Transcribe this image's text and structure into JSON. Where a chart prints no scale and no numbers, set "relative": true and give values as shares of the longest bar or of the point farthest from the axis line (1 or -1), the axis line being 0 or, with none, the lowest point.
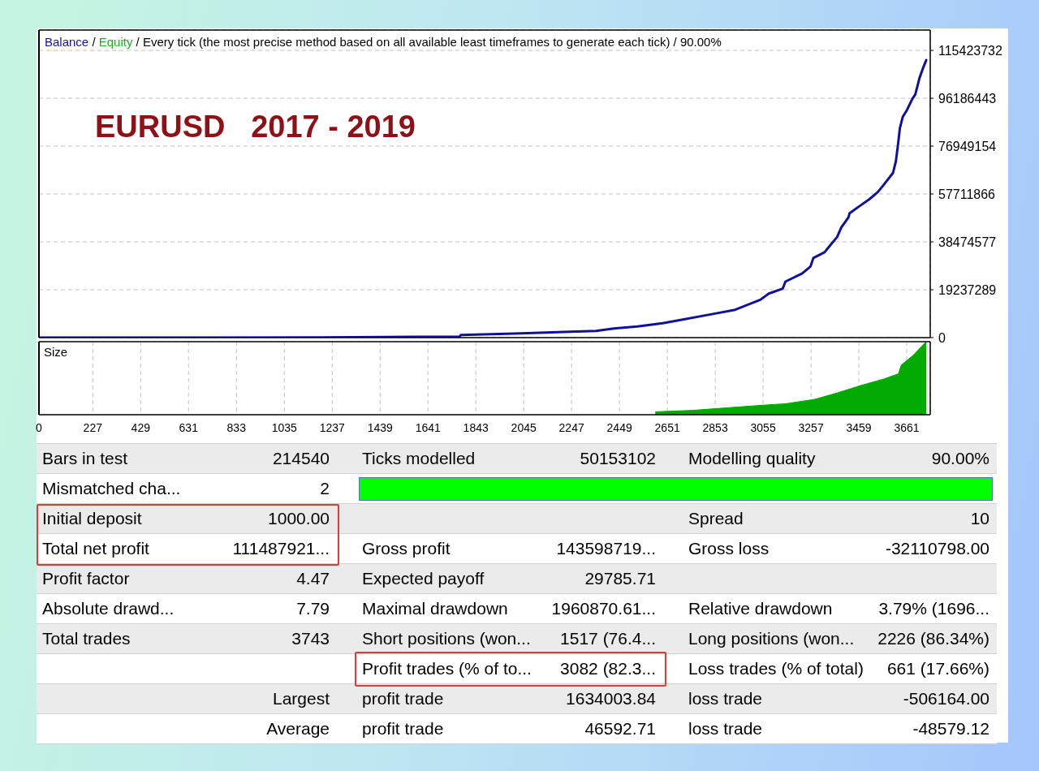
{
  "chart_data": [
    {
      "type": "line",
      "title": "EURUSD   2017 - 2019",
      "subtitle": "/ Every tick (the most precise method based on all available least timeframes to generate each tick) / 90.00%",
      "annotations": [
        "/"
      ],
      "x": [
        0,
        600,
        1200,
        1775,
        1780,
        2035,
        2240,
        2350,
        2419,
        2525,
        2631,
        2702,
        2843,
        2937,
        3043,
        3079,
        3138,
        3149,
        3220,
        3255,
        3267,
        3314,
        3338,
        3367,
        3385,
        3415,
        3420,
        3461,
        3503,
        3538,
        3562,
        3603,
        3615,
        3624,
        3632,
        3644,
        3662,
        3685,
        3697,
        3715,
        3732,
        3743
      ],
      "series": [
        {
          "name": "Balance",
          "color": "#10109c",
          "values": [
            0,
            0,
            100000,
            400000,
            1100000,
            1700000,
            2400000,
            2700000,
            3600000,
            4500000,
            5800000,
            7000000,
            9500000,
            11200000,
            15200000,
            17700000,
            19700000,
            22500000,
            25800000,
            28600000,
            32000000,
            34300000,
            37100000,
            40400000,
            44300000,
            48300000,
            50000000,
            52800000,
            55600000,
            58400000,
            61200000,
            66200000,
            70800000,
            77500000,
            84200000,
            88700000,
            91500000,
            96000000,
            97700000,
            104400000,
            108900000,
            111500000
          ]
        },
        {
          "name": "Equity",
          "color": "#1fae1f",
          "values": [
            null,
            null,
            null,
            null,
            null,
            null,
            null,
            null,
            null,
            null,
            null,
            null,
            null,
            null,
            null,
            null,
            null,
            null,
            null,
            null,
            null,
            null,
            null,
            null,
            null,
            null,
            null,
            null,
            null,
            null,
            null,
            null,
            null,
            null,
            null,
            null,
            null,
            null,
            null,
            null,
            null,
            null
          ]
        }
      ],
      "xlim": [
        0,
        3760
      ],
      "xticks": [
        0,
        227,
        429,
        631,
        833,
        1035,
        1237,
        1439,
        1641,
        1843,
        2045,
        2247,
        2449,
        2651,
        2853,
        3055,
        3257,
        3459,
        3661
      ],
      "ylim": [
        0,
        123600000
      ],
      "yticks": [
        0,
        19237289,
        38474577,
        57711866,
        76949154,
        96186443,
        115423732
      ],
      "tick_labels": "y",
      "grid": true,
      "legend": "top left"
    },
    {
      "type": "area",
      "title": "Size",
      "relative": true,
      "x": [
        2600,
        2758,
        3052,
        3149,
        3272,
        3369,
        3467,
        3565,
        3626,
        3638,
        3687,
        3743
      ],
      "series": [
        {
          "color": "#00aa00",
          "values": [
            0.04,
            0.06,
            0.13,
            0.15,
            0.21,
            0.3,
            0.4,
            0.49,
            0.56,
            0.68,
            0.81,
            1
          ]
        }
      ],
      "xlim": [
        0,
        3760
      ],
      "xticks": [
        0,
        227,
        429,
        631,
        833,
        1035,
        1237,
        1439,
        1641,
        1843,
        2045,
        2247,
        2449,
        2651,
        2853,
        3055,
        3257,
        3459,
        3661
      ],
      "tick_labels": "x",
      "grid": "x"
    },
    {
      "type": "other",
      "annotations": [
        "Bars in test",
        "214540",
        "Ticks modelled",
        "50153102",
        "Modelling quality",
        "90.00%",
        "Mismatched cha...",
        "2",
        null,
        null,
        null,
        null,
        "Initial deposit",
        "1000.00",
        null,
        null,
        "Spread",
        "10",
        "Total net profit",
        "111487921...",
        "Gross profit",
        "143598719...",
        "Gross loss",
        "-32110798.00",
        "Profit factor",
        "4.47",
        "Expected payoff",
        "29785.71",
        null,
        null,
        "Absolute drawd...",
        "7.79",
        "Maximal drawdown",
        "1960870.61...",
        "Relative drawdown",
        "3.79% (1696...",
        "Total trades",
        "3743",
        "Short positions (won...",
        "1517 (76.4...",
        "Long positions (won...",
        "2226 (86.34%)",
        null,
        null,
        "Profit trades (% of to...",
        "3082 (82.3...",
        "Loss trades (% of total)",
        "661 (17.66%)",
        null,
        "Largest",
        "profit trade",
        "1634003.84",
        "loss trade",
        "-506164.00",
        null,
        "Average",
        "profit trade",
        "46592.71",
        "loss trade",
        "-48579.12"
      ]
    }
  ]
}
